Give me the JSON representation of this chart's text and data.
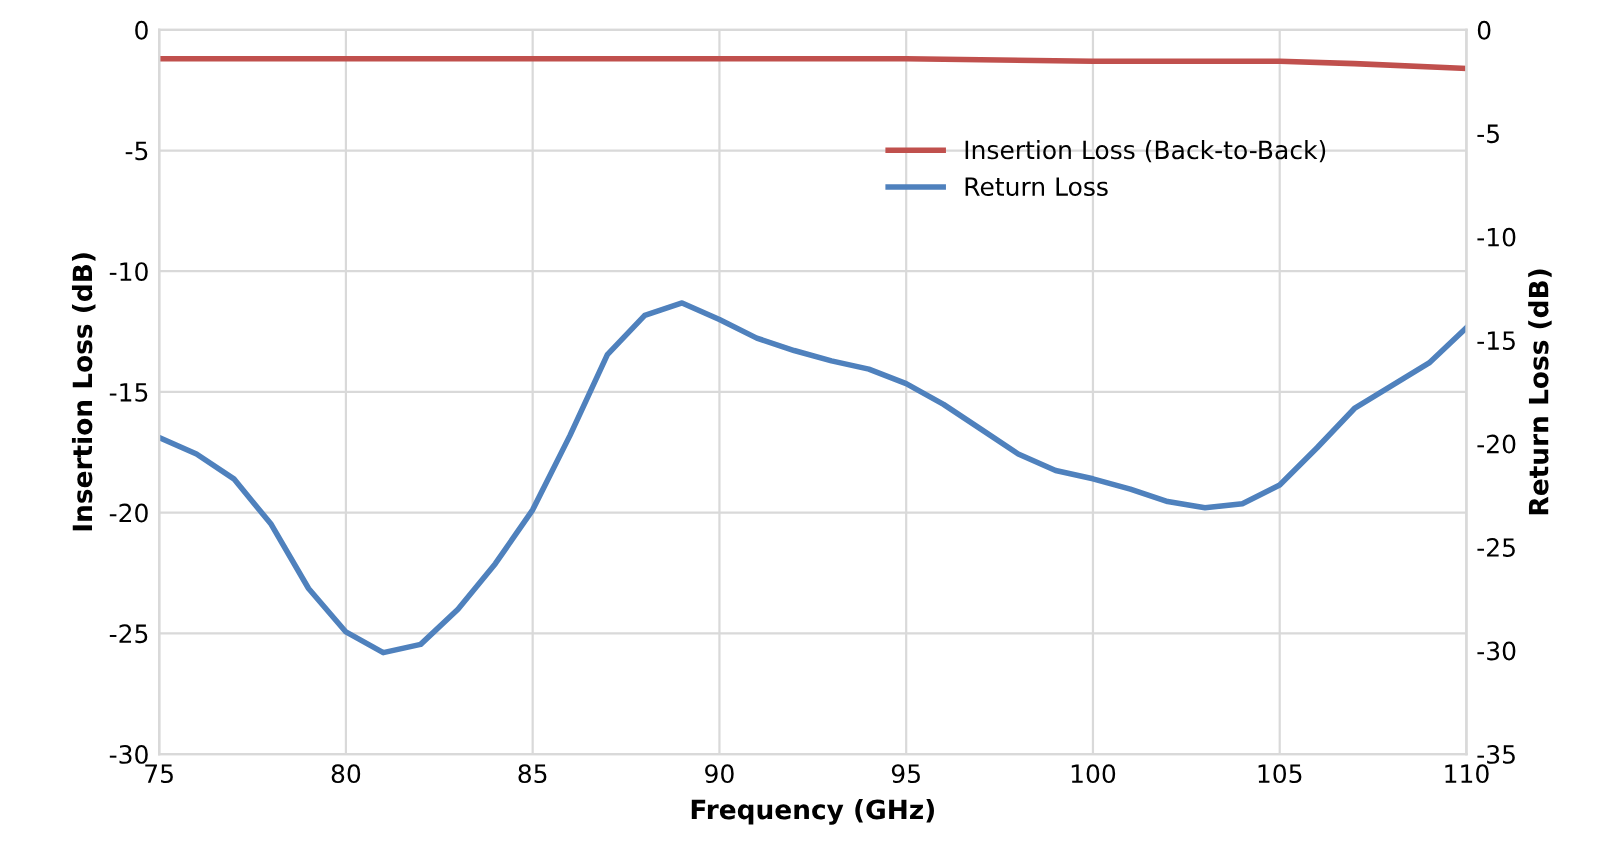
{
  "chart_data": {
    "type": "line",
    "xlabel": "Frequency (GHz)",
    "ylabel": "Insertion Loss (dB)",
    "y2label": "Return Loss (dB)",
    "xlim": [
      75,
      110
    ],
    "xticks": [
      75,
      80,
      85,
      90,
      95,
      100,
      105,
      110
    ],
    "ylim": [
      -30,
      0
    ],
    "yticks": [
      -30,
      -25,
      -20,
      -15,
      -10,
      -5,
      0
    ],
    "y2lim": [
      -35,
      0
    ],
    "y2ticks": [
      -35,
      -30,
      -25,
      -20,
      -15,
      -10,
      -5,
      0
    ],
    "grid": true,
    "legend": "top right",
    "series": [
      {
        "name": "Insertion Loss (Back-to-Back)",
        "color": "#c0504d",
        "x": [
          75,
          80,
          85,
          90,
          95,
          100,
          105,
          107,
          110
        ],
        "values": [
          -1.2,
          -1.2,
          -1.2,
          -1.2,
          -1.2,
          -1.3,
          -1.3,
          -1.4,
          -1.6
        ]
      },
      {
        "name": "Return Loss",
        "color": "#4f81bd",
        "axis": "y2",
        "x": [
          75,
          76,
          77,
          78,
          79,
          80,
          81,
          82,
          83,
          84,
          85,
          86,
          87,
          88,
          89,
          90,
          91,
          92,
          93,
          94,
          95,
          96,
          97,
          98,
          99,
          100,
          101,
          102,
          103,
          104,
          105,
          106,
          107,
          108,
          109,
          110
        ],
        "values": [
          -19.7,
          -20.5,
          -21.7,
          -23.9,
          -27.0,
          -29.1,
          -30.1,
          -29.7,
          -28.0,
          -25.8,
          -23.2,
          -19.6,
          -15.7,
          -13.8,
          -13.2,
          -14.0,
          -14.9,
          -15.5,
          -16.0,
          -16.4,
          -17.1,
          -18.1,
          -19.3,
          -20.5,
          -21.3,
          -21.7,
          -22.2,
          -22.8,
          -23.1,
          -22.9,
          -22.0,
          -20.2,
          -18.3,
          -17.2,
          -16.1,
          -14.4
        ]
      }
    ]
  }
}
